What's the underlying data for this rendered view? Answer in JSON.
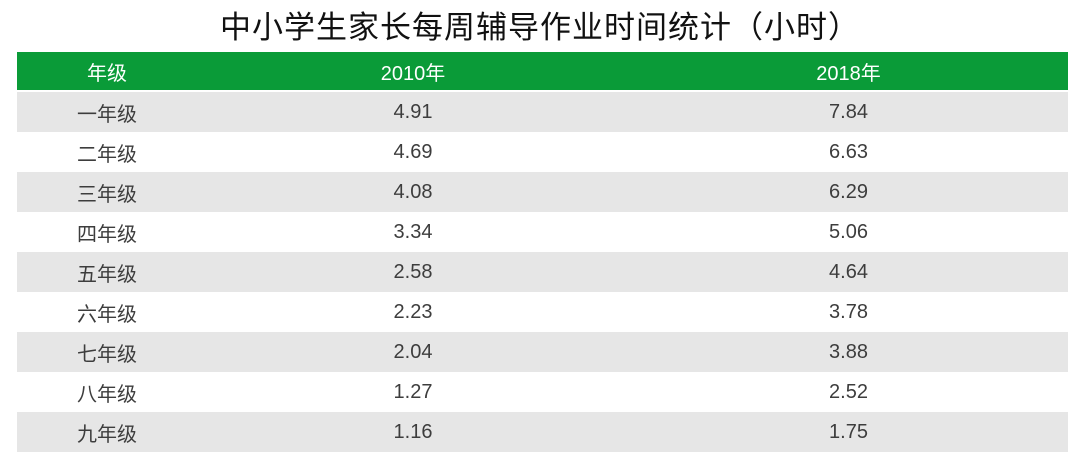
{
  "title": "中小学生家长每周辅导作业时间统计（小时）",
  "colors": {
    "header_bg": "#0a9b38",
    "header_fg": "#ffffff",
    "row_alt_bg": "#e6e6e6",
    "cell_fg": "#3d3d3d"
  },
  "table": {
    "columns": [
      "年级",
      "2010年",
      "2018年"
    ],
    "rows": [
      {
        "grade": "一年级",
        "y2010": "4.91",
        "y2018": "7.84"
      },
      {
        "grade": "二年级",
        "y2010": "4.69",
        "y2018": "6.63"
      },
      {
        "grade": "三年级",
        "y2010": "4.08",
        "y2018": "6.29"
      },
      {
        "grade": "四年级",
        "y2010": "3.34",
        "y2018": "5.06"
      },
      {
        "grade": "五年级",
        "y2010": "2.58",
        "y2018": "4.64"
      },
      {
        "grade": "六年级",
        "y2010": "2.23",
        "y2018": "3.78"
      },
      {
        "grade": "七年级",
        "y2010": "2.04",
        "y2018": "3.88"
      },
      {
        "grade": "八年级",
        "y2010": "1.27",
        "y2018": "2.52"
      },
      {
        "grade": "九年级",
        "y2010": "1.16",
        "y2018": "1.75"
      }
    ]
  },
  "chart_data": {
    "type": "table",
    "title": "中小学生家长每周辅导作业时间统计（小时）",
    "categories": [
      "一年级",
      "二年级",
      "三年级",
      "四年级",
      "五年级",
      "六年级",
      "七年级",
      "八年级",
      "九年级"
    ],
    "series": [
      {
        "name": "2010年",
        "values": [
          4.91,
          4.69,
          4.08,
          3.34,
          2.58,
          2.23,
          2.04,
          1.27,
          1.16
        ]
      },
      {
        "name": "2018年",
        "values": [
          7.84,
          6.63,
          6.29,
          5.06,
          4.64,
          3.78,
          3.88,
          2.52,
          1.75
        ]
      }
    ]
  }
}
